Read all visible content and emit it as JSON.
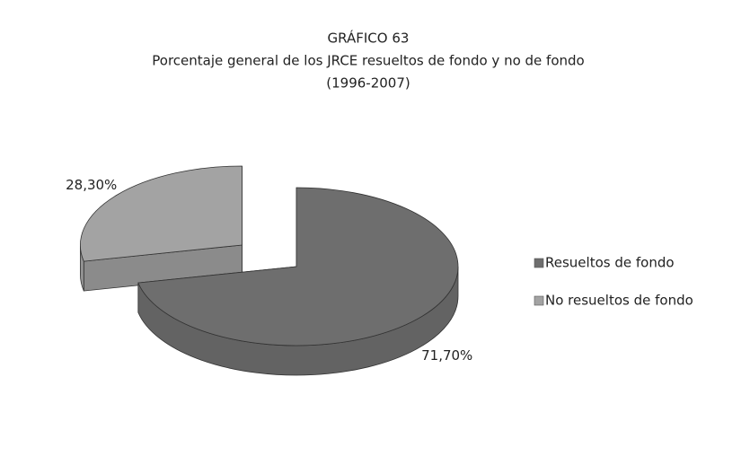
{
  "chart_data": {
    "type": "pie",
    "title": "GRÁFICO 63",
    "subtitle_lines": [
      "Porcentaje general de los JRCE resueltos de fondo y no de fondo",
      "(1996-2007)"
    ],
    "categories": [
      "Resueltos de fondo",
      "No resueltos de fondo"
    ],
    "values": [
      71.7,
      28.3
    ],
    "value_labels": [
      "71,70%",
      "28,30%"
    ],
    "colors": [
      "#6e6e6e",
      "#a3a3a3"
    ],
    "exploded": [
      false,
      true
    ],
    "legend": "right"
  }
}
